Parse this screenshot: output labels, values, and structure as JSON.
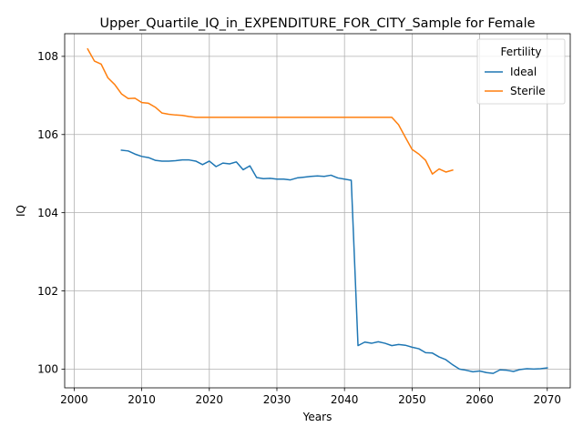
{
  "chart_data": {
    "type": "line",
    "title": "Upper_Quartile_IQ_in_EXPENDITURE_FOR_CITY_Sample for Female",
    "xlabel": "Years",
    "ylabel": "IQ",
    "xlim": [
      1998.6,
      2073.4
    ],
    "ylim": [
      99.52,
      108.58
    ],
    "xticks": [
      2000,
      2010,
      2020,
      2030,
      2040,
      2050,
      2060,
      2070
    ],
    "yticks": [
      100,
      102,
      104,
      106,
      108
    ],
    "grid": true,
    "legend": {
      "title": "Fertility",
      "placement": "top-right"
    },
    "series": [
      {
        "name": "Ideal",
        "color": "#1f77b4",
        "points": [
          [
            2007,
            105.6
          ],
          [
            2008,
            105.58
          ],
          [
            2009,
            105.5
          ],
          [
            2010,
            105.44
          ],
          [
            2011,
            105.41
          ],
          [
            2012,
            105.34
          ],
          [
            2013,
            105.32
          ],
          [
            2014,
            105.32
          ],
          [
            2015,
            105.33
          ],
          [
            2016,
            105.35
          ],
          [
            2017,
            105.35
          ],
          [
            2018,
            105.32
          ],
          [
            2019,
            105.23
          ],
          [
            2020,
            105.32
          ],
          [
            2021,
            105.18
          ],
          [
            2022,
            105.27
          ],
          [
            2023,
            105.25
          ],
          [
            2024,
            105.3
          ],
          [
            2025,
            105.1
          ],
          [
            2026,
            105.2
          ],
          [
            2027,
            104.9
          ],
          [
            2028,
            104.87
          ],
          [
            2029,
            104.88
          ],
          [
            2030,
            104.86
          ],
          [
            2031,
            104.86
          ],
          [
            2032,
            104.84
          ],
          [
            2033,
            104.89
          ],
          [
            2034,
            104.91
          ],
          [
            2035,
            104.93
          ],
          [
            2036,
            104.94
          ],
          [
            2037,
            104.93
          ],
          [
            2038,
            104.96
          ],
          [
            2039,
            104.89
          ],
          [
            2040,
            104.86
          ],
          [
            2041,
            104.83
          ],
          [
            2042,
            100.6
          ],
          [
            2043,
            100.69
          ],
          [
            2044,
            100.66
          ],
          [
            2045,
            100.7
          ],
          [
            2046,
            100.66
          ],
          [
            2047,
            100.6
          ],
          [
            2048,
            100.63
          ],
          [
            2049,
            100.61
          ],
          [
            2050,
            100.56
          ],
          [
            2051,
            100.52
          ],
          [
            2052,
            100.42
          ],
          [
            2053,
            100.41
          ],
          [
            2054,
            100.31
          ],
          [
            2055,
            100.24
          ],
          [
            2056,
            100.11
          ],
          [
            2057,
            100.0
          ],
          [
            2058,
            99.97
          ],
          [
            2059,
            99.93
          ],
          [
            2060,
            99.95
          ],
          [
            2061,
            99.91
          ],
          [
            2062,
            99.89
          ],
          [
            2063,
            99.98
          ],
          [
            2064,
            99.97
          ],
          [
            2065,
            99.94
          ],
          [
            2066,
            99.99
          ],
          [
            2067,
            100.01
          ],
          [
            2068,
            100.0
          ],
          [
            2069,
            100.01
          ],
          [
            2070,
            100.03
          ]
        ]
      },
      {
        "name": "Sterile",
        "color": "#ff7f0e",
        "points": [
          [
            2002,
            108.19
          ],
          [
            2003,
            107.88
          ],
          [
            2004,
            107.8
          ],
          [
            2005,
            107.45
          ],
          [
            2006,
            107.28
          ],
          [
            2007,
            107.04
          ],
          [
            2008,
            106.92
          ],
          [
            2009,
            106.93
          ],
          [
            2010,
            106.82
          ],
          [
            2011,
            106.8
          ],
          [
            2012,
            106.7
          ],
          [
            2013,
            106.55
          ],
          [
            2014,
            106.52
          ],
          [
            2015,
            106.5
          ],
          [
            2016,
            106.49
          ],
          [
            2017,
            106.46
          ],
          [
            2018,
            106.44
          ],
          [
            2019,
            106.44
          ],
          [
            2020,
            106.44
          ],
          [
            2025,
            106.44
          ],
          [
            2030,
            106.44
          ],
          [
            2035,
            106.44
          ],
          [
            2040,
            106.44
          ],
          [
            2045,
            106.44
          ],
          [
            2047,
            106.44
          ],
          [
            2048,
            106.25
          ],
          [
            2049,
            105.93
          ],
          [
            2050,
            105.62
          ],
          [
            2051,
            105.5
          ],
          [
            2052,
            105.34
          ],
          [
            2053,
            104.99
          ],
          [
            2054,
            105.12
          ],
          [
            2055,
            105.04
          ],
          [
            2056,
            105.09
          ]
        ]
      }
    ]
  }
}
